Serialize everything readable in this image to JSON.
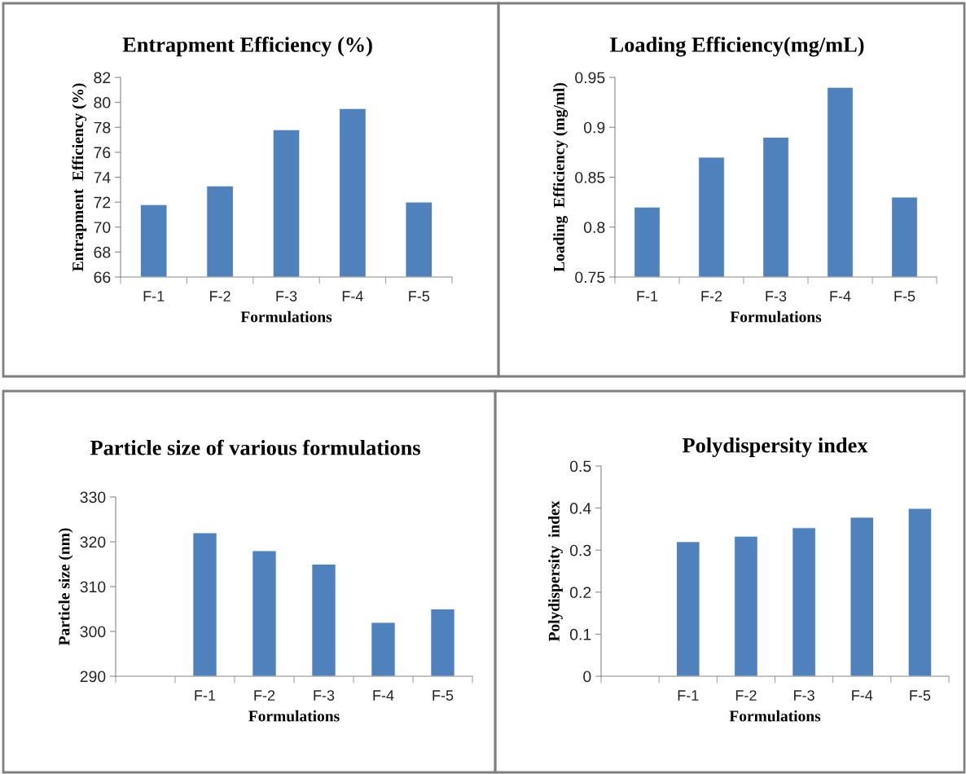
{
  "chart_data": [
    {
      "type": "bar",
      "title": "Entrapment Efficiency (%)",
      "xlabel": "Formulations",
      "ylabel": "Entrapment  Efficiency (%)",
      "categories": [
        "F-1",
        "F-2",
        "F-3",
        "F-4",
        "F-5"
      ],
      "values": [
        71.8,
        73.3,
        77.8,
        79.5,
        72.0
      ],
      "color": "#4f81bd",
      "ylim": [
        66,
        82
      ],
      "yticks": [
        66,
        68,
        70,
        72,
        74,
        76,
        78,
        80,
        82
      ],
      "grid": false,
      "legend": false
    },
    {
      "type": "bar",
      "title": "Loading Efficiency(mg/mL)",
      "xlabel": "Formulations",
      "ylabel": "Loading  Efficiency (mg/ml)",
      "categories": [
        "F-1",
        "F-2",
        "F-3",
        "F-4",
        "F-5"
      ],
      "values": [
        0.82,
        0.87,
        0.89,
        0.94,
        0.83
      ],
      "color": "#4f81bd",
      "ylim": [
        0.75,
        0.95
      ],
      "yticks": [
        0.75,
        0.8,
        0.85,
        0.9,
        0.95
      ],
      "grid": false,
      "legend": false
    },
    {
      "type": "bar",
      "title": "Particle size of various formulations",
      "xlabel": "Formulations",
      "ylabel": "Particle size (nm)",
      "categories": [
        null,
        "F-1",
        "F-2",
        "F-3",
        "F-4",
        "F-5"
      ],
      "values": [
        null,
        322,
        318,
        315,
        302,
        305
      ],
      "color": "#4f81bd",
      "ylim": [
        290,
        330
      ],
      "yticks": [
        290,
        300,
        310,
        320,
        330
      ],
      "grid": false,
      "legend": false
    },
    {
      "type": "bar",
      "title": "Polydispersity index",
      "xlabel": "Formulations",
      "ylabel": "Polydispersity  index",
      "categories": [
        null,
        "F-1",
        "F-2",
        "F-3",
        "F-4",
        "F-5"
      ],
      "values": [
        null,
        0.32,
        0.333,
        0.353,
        0.378,
        0.399
      ],
      "color": "#4f81bd",
      "ylim": [
        0,
        0.5
      ],
      "yticks": [
        0,
        0.1,
        0.2,
        0.3,
        0.4,
        0.5
      ],
      "grid": false,
      "legend": false
    }
  ]
}
